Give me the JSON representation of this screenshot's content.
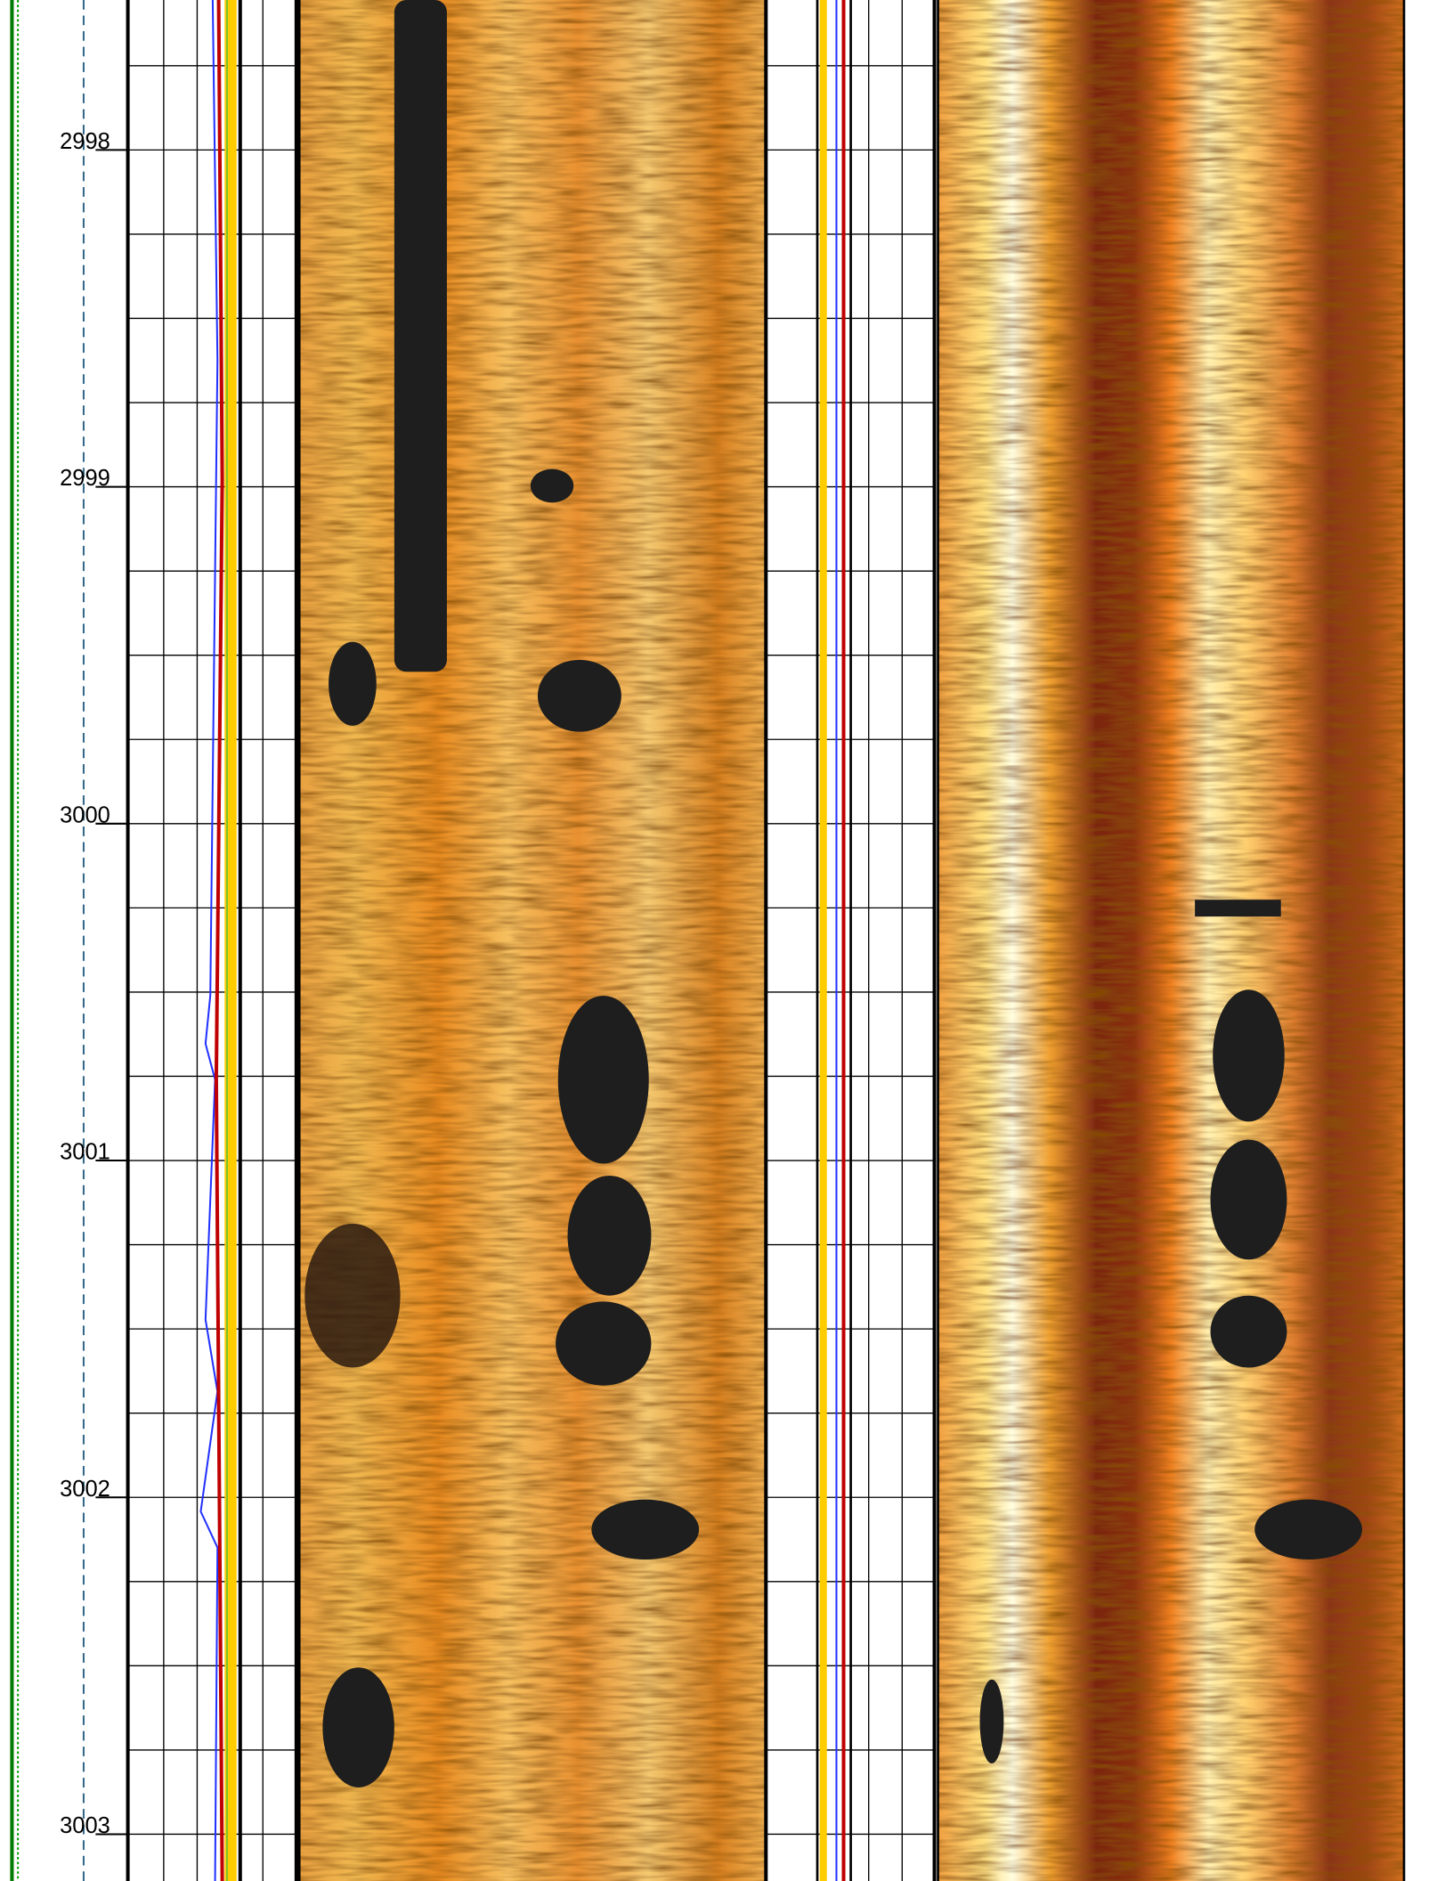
{
  "depth_track": {
    "labels": [
      2998,
      2999,
      3000,
      3001,
      3002,
      3003
    ]
  }
}
